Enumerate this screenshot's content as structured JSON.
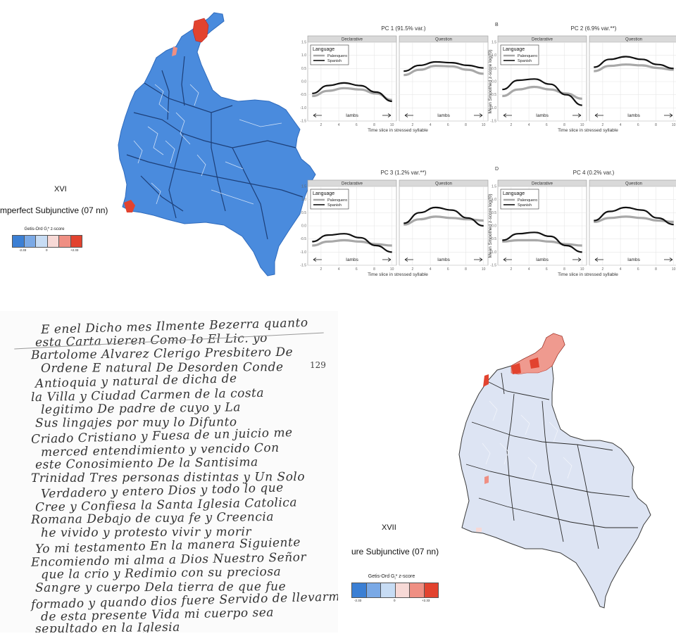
{
  "map_left": {
    "numeral": "XVI",
    "caption": "mperfect Subjunctive (07 nn)",
    "legend_title": "Getis-Ord G",
    "legend_title_sub": "i",
    "legend_title_rest": "* z-score",
    "legend_ticks": [
      "-2.33",
      "0",
      "+2.33"
    ],
    "legend_colors": [
      "#3b7fd4",
      "#7aa9e6",
      "#c7dcf4",
      "#f7d9d6",
      "#ef8f83",
      "#e2432f"
    ],
    "fill_color": "#4a8bdd"
  },
  "map_right": {
    "numeral": "XVII",
    "caption": "ure Subjunctive (07 nn)",
    "legend_title": "Getis-Ord G",
    "legend_title_sub": "i",
    "legend_title_rest": "* z-score",
    "legend_ticks": [
      "-2.33",
      "0",
      "+2.33"
    ],
    "legend_colors": [
      "#3b7fd4",
      "#7aa9e6",
      "#c7dcf4",
      "#f7d9d6",
      "#ef8f83",
      "#e2432f"
    ],
    "fill_color": "#dde4f3"
  },
  "chart_data": [
    {
      "type": "line",
      "title": "PC 1 (91.5% var.)",
      "letter": "",
      "facets": [
        "Declarative",
        "Question"
      ],
      "xlabel": "Time slice in stressed syllable",
      "ylabel": "",
      "ylim": [
        -1.5,
        1.5
      ],
      "yticks": [
        "-1.5",
        "-1.0",
        "-0.5",
        "0.0",
        "0.5",
        "1.0",
        "1.5"
      ],
      "xticks": [
        2,
        4,
        6,
        8,
        10
      ],
      "legend_title": "Language",
      "annotation": "Iambs",
      "series": [
        {
          "name": "Palenquero",
          "color": "#a8a8a8",
          "facet_values": [
            [
              -0.55,
              -0.35,
              -0.25,
              -0.3,
              -0.45,
              -0.7
            ],
            [
              0.25,
              0.45,
              0.6,
              0.58,
              0.45,
              0.3
            ]
          ]
        },
        {
          "name": "Spanish",
          "color": "#111111",
          "facet_values": [
            [
              -0.45,
              -0.15,
              -0.05,
              -0.15,
              -0.4,
              -0.75
            ],
            [
              0.4,
              0.62,
              0.75,
              0.72,
              0.62,
              0.52
            ]
          ]
        }
      ]
    },
    {
      "type": "line",
      "title": "PC 2 (6.9% var.**)",
      "letter": "B",
      "facets": [
        "Declarative",
        "Question"
      ],
      "xlabel": "Time slice in stressed syllable",
      "ylabel": "Mean Smoothed z-score log(f0)",
      "ylim": [
        -1.5,
        1.5
      ],
      "yticks": [
        "-1.5",
        "-1.0",
        "-0.5",
        "0.0",
        "0.5",
        "1.0",
        "1.5"
      ],
      "xticks": [
        2,
        4,
        6,
        8,
        10
      ],
      "legend_title": "Language",
      "annotation": "Iambs",
      "series": [
        {
          "name": "Palenquero",
          "color": "#a8a8a8",
          "facet_values": [
            [
              -0.55,
              -0.3,
              -0.2,
              -0.3,
              -0.45,
              -0.65
            ],
            [
              0.4,
              0.6,
              0.65,
              0.62,
              0.52,
              0.45
            ]
          ]
        },
        {
          "name": "Spanish",
          "color": "#111111",
          "facet_values": [
            [
              -0.3,
              0.05,
              0.1,
              -0.1,
              -0.5,
              -0.9
            ],
            [
              0.55,
              0.85,
              0.95,
              0.85,
              0.65,
              0.5
            ]
          ]
        }
      ]
    },
    {
      "type": "line",
      "title": "PC 3 (1.2% var.**)",
      "letter": "",
      "facets": [
        "Declarative",
        "Question"
      ],
      "xlabel": "Time slice in stressed syllable",
      "ylabel": "",
      "ylim": [
        -1.5,
        1.5
      ],
      "yticks": [
        "-1.5",
        "-1.0",
        "-0.5",
        "0.0",
        "0.5",
        "1.0",
        "1.5"
      ],
      "xticks": [
        2,
        4,
        6,
        8,
        10
      ],
      "legend_title": "Language",
      "annotation": "Iambs",
      "series": [
        {
          "name": "Palenquero",
          "color": "#a8a8a8",
          "facet_values": [
            [
              -0.75,
              -0.6,
              -0.55,
              -0.6,
              -0.7,
              -0.75
            ],
            [
              0.05,
              0.25,
              0.35,
              0.3,
              0.25,
              0.2
            ]
          ]
        },
        {
          "name": "Spanish",
          "color": "#111111",
          "facet_values": [
            [
              -0.6,
              -0.35,
              -0.3,
              -0.45,
              -0.75,
              -1.0
            ],
            [
              0.1,
              0.5,
              0.7,
              0.6,
              0.3,
              0.0
            ]
          ]
        }
      ]
    },
    {
      "type": "line",
      "title": "PC 4 (0.2% var.)",
      "letter": "D",
      "facets": [
        "Declarative",
        "Question"
      ],
      "xlabel": "Time slice in stressed syllable",
      "ylabel": "Mean Smoothed z-score log(f0)",
      "ylim": [
        -1.5,
        1.5
      ],
      "yticks": [
        "-1.5",
        "-1.0",
        "-0.5",
        "0.0",
        "0.5",
        "1.0",
        "1.5"
      ],
      "xticks": [
        2,
        4,
        6,
        8,
        10
      ],
      "legend_title": "Language",
      "annotation": "Iambs",
      "series": [
        {
          "name": "Palenquero",
          "color": "#a8a8a8",
          "facet_values": [
            [
              -0.6,
              -0.55,
              -0.55,
              -0.6,
              -0.7,
              -0.75
            ],
            [
              0.15,
              0.3,
              0.35,
              0.3,
              0.2,
              0.15
            ]
          ]
        },
        {
          "name": "Spanish",
          "color": "#111111",
          "facet_values": [
            [
              -0.55,
              -0.3,
              -0.25,
              -0.4,
              -0.75,
              -1.0
            ],
            [
              0.2,
              0.55,
              0.7,
              0.6,
              0.3,
              0.05
            ]
          ]
        }
      ]
    }
  ],
  "manuscript": {
    "page_number": "129",
    "lines": [
      "E enel Dicho mes Ilmente Bezerra quanto",
      "esta Carta vieren Como Io El Lic. yo",
      "Bartolome Alvarez Clerigo Presbitero De",
      "Ordene E natural De Desorden Conde",
      "Antioquia y natural de dicha de",
      "la Villa y Ciudad Carmen de la costa",
      "legitimo De padre de cuyo y La",
      "Sus lingajes por muy lo Difunto",
      "Criado Cristiano y Fuesa de un juicio me",
      "merced entendimiento y vencido Con",
      "este Conosimiento De la Santisima",
      "Trinidad Tres personas distintas y Un Solo",
      "Verdadero y entero Dios y todo lo que",
      "Cree y Confiesa la Santa Iglesia Catolica",
      "Romana Debajo de cuya fe y Creencia",
      "he vivido y protesto vivir y morir",
      "Yo mi testamento En la manera Siguiente",
      "Encomiendo mi alma a Dios Nuestro Señor",
      "que la crio y Redimio con su preciosa",
      "Sangre y cuerpo Dela tierra de que fue",
      "formado y quando dios fuere Servido de llevarme",
      "de esta presente Vida mi cuerpo sea",
      "sepultado en la Iglesia"
    ]
  }
}
